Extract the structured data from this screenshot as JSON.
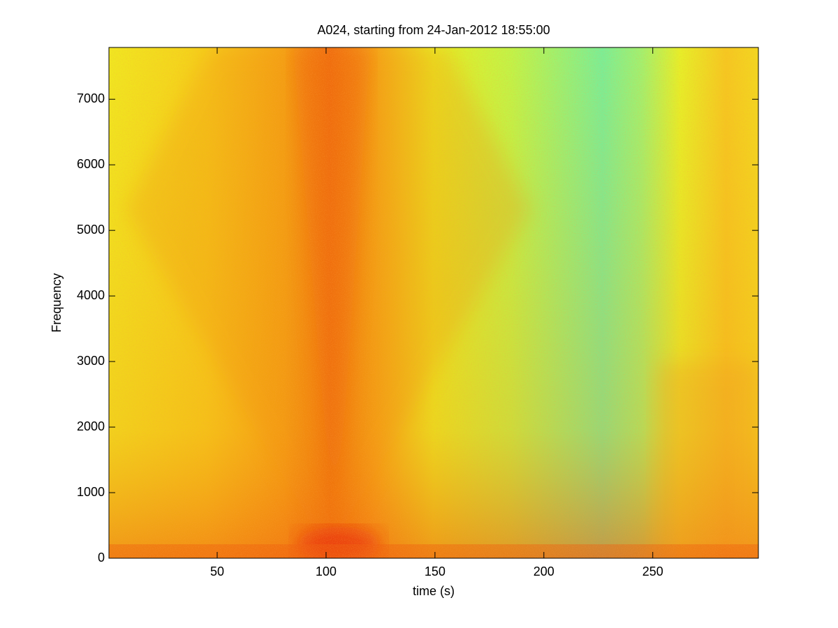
{
  "chart_data": {
    "type": "spectrogram",
    "title": "A024, starting from 24-Jan-2012 18:55:00",
    "x_label": "time (s)",
    "y_label": "Frequency",
    "xlim": [
      0.3,
      298.5
    ],
    "xticks": [
      50,
      100,
      150,
      200,
      250
    ],
    "ylim": [
      0,
      7790
    ],
    "yticks": [
      0,
      1000,
      2000,
      3000,
      4000,
      5000,
      6000,
      7000
    ]
  }
}
